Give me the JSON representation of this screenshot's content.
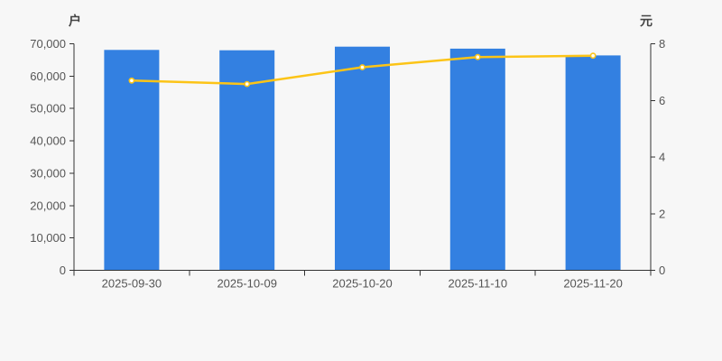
{
  "chart_data": {
    "type": "bar+line",
    "categories": [
      "2025-09-30",
      "2025-10-09",
      "2025-10-20",
      "2025-11-10",
      "2025-11-20"
    ],
    "series": [
      {
        "name": "households-bars",
        "type": "bar",
        "axis": "left",
        "color": "#3380E1",
        "values": [
          68100,
          68000,
          69100,
          68500,
          66400
        ]
      },
      {
        "name": "price-line",
        "type": "line",
        "axis": "right",
        "color": "#FCC417",
        "marker_fill": "#FFFFFF",
        "values": [
          6.7,
          6.58,
          7.17,
          7.53,
          7.58
        ]
      }
    ],
    "left_axis": {
      "title": "户",
      "min": 0,
      "max": 70000,
      "tick_step": 10000,
      "tick_labels": [
        "0",
        "10,000",
        "20,000",
        "30,000",
        "40,000",
        "50,000",
        "60,000",
        "70,000"
      ]
    },
    "right_axis": {
      "title": "元",
      "min": 0,
      "max": 8,
      "tick_step": 2,
      "tick_labels": [
        "0",
        "2",
        "4",
        "6",
        "8"
      ]
    },
    "grid": false,
    "legend": false,
    "background_color": "#F7F7F7",
    "axis_line_color": "#333333",
    "tick_label_color": "#555555"
  }
}
